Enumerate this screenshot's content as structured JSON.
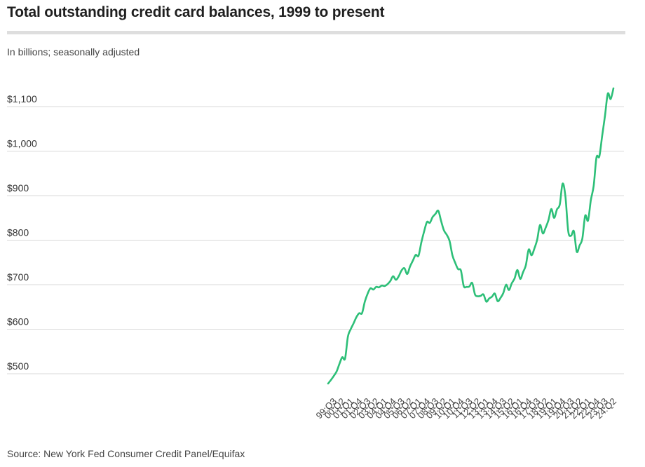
{
  "chart_data": {
    "type": "line",
    "title": "Total outstanding credit card balances, 1999 to present",
    "subtitle": "In billions; seasonally adjusted",
    "source": "Source: New York Fed Consumer Credit Panel/Equifax",
    "ylim": [
      460,
      1160
    ],
    "y_ticks": [
      500,
      600,
      700,
      800,
      900,
      1000,
      1100
    ],
    "y_tick_labels": [
      "$500",
      "$600",
      "$700",
      "$800",
      "$900",
      "$1,000",
      "$1,100"
    ],
    "grid": true,
    "line_color": "#2dbf78",
    "x_tick_labels": [
      "99:Q3",
      "00:Q2",
      "01:Q1",
      "01:Q4",
      "02:Q3",
      "03:Q2",
      "04:Q1",
      "04:Q4",
      "05:Q3",
      "06:Q2",
      "07:Q1",
      "07:Q4",
      "08:Q3",
      "09:Q2",
      "10:Q1",
      "10:Q4",
      "11:Q3",
      "12:Q2",
      "13:Q1",
      "13:Q4",
      "14:Q3",
      "15:Q2",
      "16:Q1",
      "16:Q4",
      "17:Q3",
      "18:Q2",
      "19:Q1",
      "19:Q4",
      "20:Q3",
      "21:Q2",
      "22:Q1",
      "22:Q4",
      "23:Q3",
      "24:Q2"
    ],
    "series": [
      {
        "x": [
          "99:Q1",
          "99:Q2",
          "99:Q3",
          "99:Q4",
          "00:Q1",
          "00:Q2",
          "00:Q3",
          "00:Q4",
          "01:Q1",
          "01:Q2",
          "01:Q3",
          "01:Q4",
          "02:Q1",
          "02:Q2",
          "02:Q3",
          "02:Q4",
          "03:Q1",
          "03:Q2",
          "03:Q3",
          "03:Q4",
          "04:Q1",
          "04:Q2",
          "04:Q3",
          "04:Q4",
          "05:Q1",
          "05:Q2",
          "05:Q3",
          "05:Q4",
          "06:Q1",
          "06:Q2",
          "06:Q3",
          "06:Q4",
          "07:Q1",
          "07:Q2",
          "07:Q3",
          "07:Q4",
          "08:Q1",
          "08:Q2",
          "08:Q3",
          "08:Q4",
          "09:Q1",
          "09:Q2",
          "09:Q3",
          "09:Q4",
          "10:Q1",
          "10:Q2",
          "10:Q3",
          "10:Q4",
          "11:Q1",
          "11:Q2",
          "11:Q3",
          "11:Q4",
          "12:Q1",
          "12:Q2",
          "12:Q3",
          "12:Q4",
          "13:Q1",
          "13:Q2",
          "13:Q3",
          "13:Q4",
          "14:Q1",
          "14:Q2",
          "14:Q3",
          "14:Q4",
          "15:Q1",
          "15:Q2",
          "15:Q3",
          "15:Q4",
          "16:Q1",
          "16:Q2",
          "16:Q3",
          "16:Q4",
          "17:Q1",
          "17:Q2",
          "17:Q3",
          "17:Q4",
          "18:Q1",
          "18:Q2",
          "18:Q3",
          "18:Q4",
          "19:Q1",
          "19:Q2",
          "19:Q3",
          "19:Q4",
          "20:Q1",
          "20:Q2",
          "20:Q3",
          "20:Q4",
          "21:Q1",
          "21:Q2",
          "21:Q3",
          "21:Q4",
          "22:Q1",
          "22:Q2",
          "22:Q3",
          "22:Q4",
          "23:Q1",
          "23:Q2",
          "23:Q3",
          "23:Q4",
          "24:Q1",
          "24:Q2"
        ],
        "values": [
          478,
          486,
          495,
          505,
          522,
          537,
          534,
          583,
          600,
          613,
          627,
          636,
          636,
          662,
          680,
          692,
          689,
          695,
          694,
          698,
          697,
          701,
          708,
          719,
          711,
          719,
          732,
          737,
          724,
          741,
          754,
          767,
          765,
          795,
          820,
          841,
          839,
          852,
          859,
          866,
          843,
          822,
          812,
          798,
          766,
          749,
          735,
          732,
          697,
          695,
          696,
          704,
          678,
          674,
          675,
          678,
          662,
          669,
          673,
          680,
          663,
          670,
          681,
          700,
          688,
          703,
          714,
          733,
          713,
          728,
          744,
          779,
          766,
          781,
          801,
          834,
          815,
          828,
          845,
          870,
          850,
          869,
          880,
          927,
          898,
          820,
          810,
          820,
          774,
          788,
          804,
          855,
          844,
          890,
          922,
          986,
          988,
          1034,
          1079,
          1129,
          1117,
          1141
        ]
      }
    ]
  }
}
